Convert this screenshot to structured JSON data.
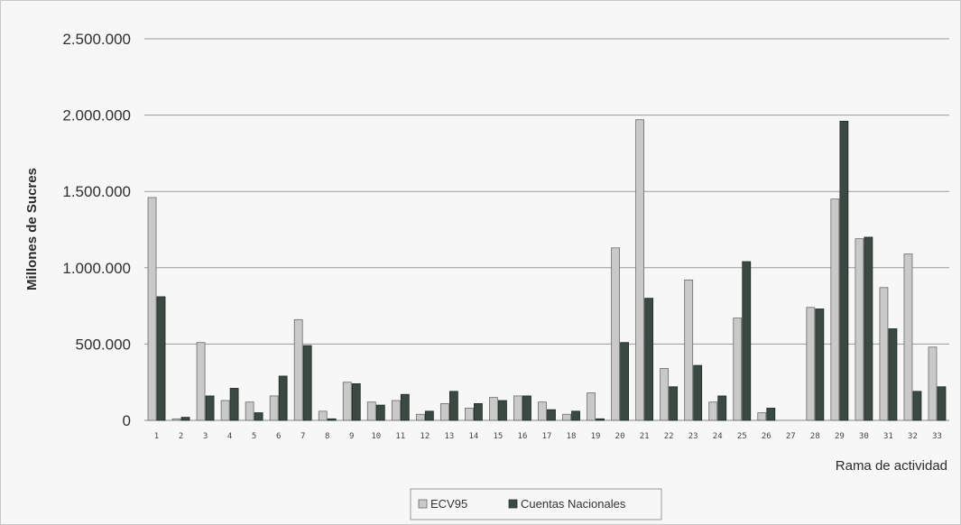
{
  "chart_data": {
    "type": "bar",
    "title": "",
    "xlabel": "Rama de actividad",
    "ylabel": "Millones de Sucres",
    "ylim": [
      0,
      2500000
    ],
    "yticks": [
      0,
      500000,
      1000000,
      1500000,
      2000000,
      2500000
    ],
    "ytick_labels": [
      "0",
      "500.000",
      "1.000.000",
      "1.500.000",
      "2.000.000",
      "2.500.000"
    ],
    "grid": true,
    "legend_position": "bottom",
    "categories": [
      "1",
      "2",
      "3",
      "4",
      "5",
      "6",
      "7",
      "8",
      "9",
      "10",
      "11",
      "12",
      "13",
      "14",
      "15",
      "16",
      "17",
      "18",
      "19",
      "20",
      "21",
      "22",
      "23",
      "24",
      "25",
      "26",
      "27",
      "28",
      "29",
      "30",
      "31",
      "32",
      "33"
    ],
    "series": [
      {
        "name": "ECV95",
        "color": "#c9c9c9",
        "values": [
          1460000,
          10000,
          510000,
          130000,
          120000,
          160000,
          660000,
          60000,
          250000,
          120000,
          130000,
          40000,
          110000,
          80000,
          150000,
          160000,
          120000,
          40000,
          180000,
          1130000,
          1970000,
          340000,
          920000,
          120000,
          670000,
          50000,
          0,
          740000,
          1450000,
          1190000,
          870000,
          1090000,
          480000
        ]
      },
      {
        "name": "Cuentas Nacionales",
        "color": "#3a4a42",
        "values": [
          810000,
          20000,
          160000,
          210000,
          50000,
          290000,
          490000,
          10000,
          240000,
          100000,
          170000,
          60000,
          190000,
          110000,
          130000,
          160000,
          70000,
          60000,
          10000,
          510000,
          800000,
          220000,
          360000,
          160000,
          1040000,
          80000,
          0,
          730000,
          1960000,
          1200000,
          600000,
          190000,
          220000
        ]
      }
    ]
  }
}
